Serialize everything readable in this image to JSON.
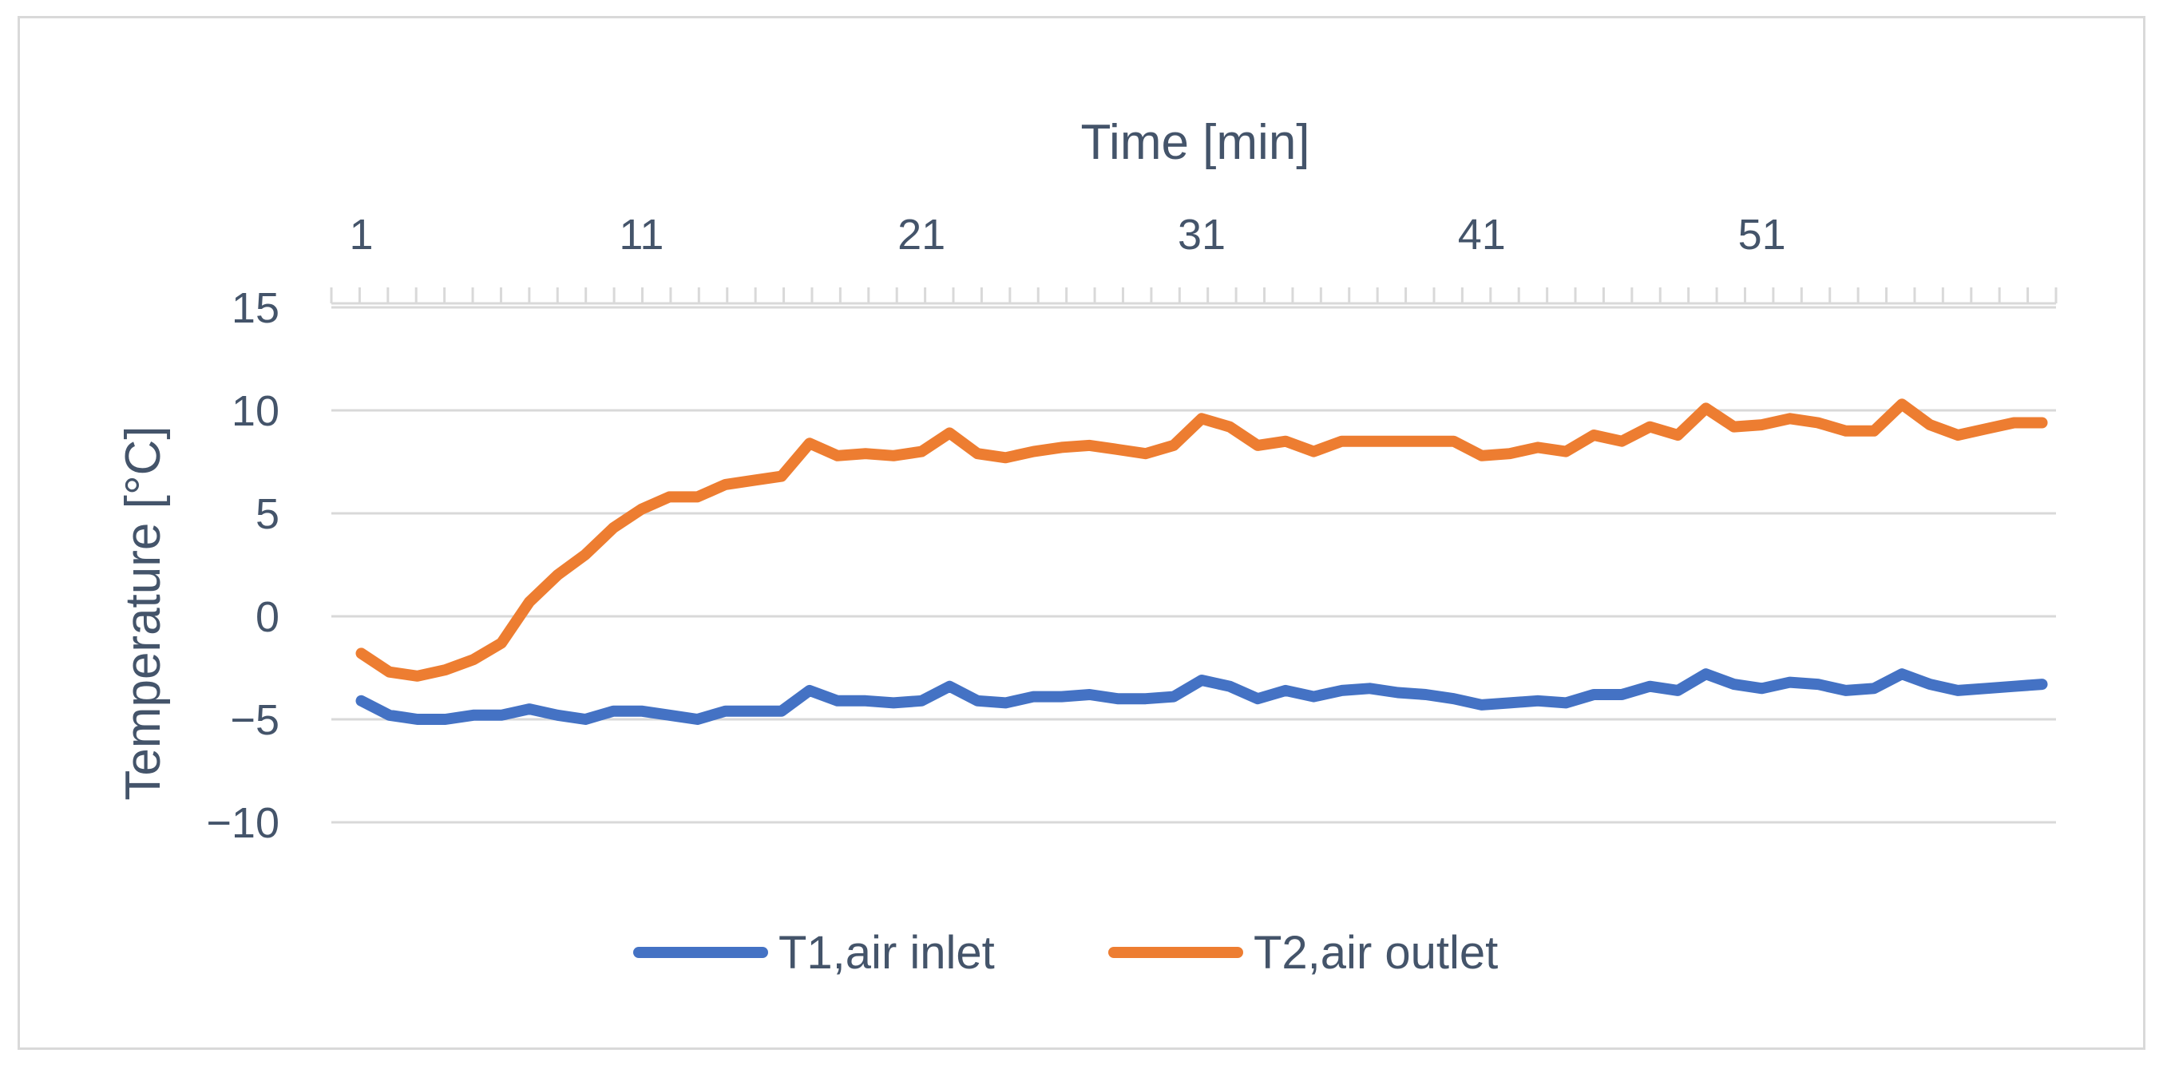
{
  "chart_data": {
    "type": "line",
    "title": "",
    "xlabel": "Time [min]",
    "ylabel": "Temperature [°C]",
    "x_tick_labels": [
      "1",
      "11",
      "21",
      "31",
      "41",
      "51"
    ],
    "y_tick_labels": [
      "15",
      "10",
      "5",
      "0",
      "−5",
      "−10"
    ],
    "y_ticks": [
      15,
      10,
      5,
      0,
      -5,
      -10
    ],
    "x_ticks": [
      1,
      11,
      21,
      31,
      41,
      51
    ],
    "xlim": [
      1,
      61
    ],
    "ylim": [
      -10,
      15
    ],
    "x_axis_position": "top",
    "grid": true,
    "legend_position": "bottom",
    "x": [
      1,
      2,
      3,
      4,
      5,
      6,
      7,
      8,
      9,
      10,
      11,
      12,
      13,
      14,
      15,
      16,
      17,
      18,
      19,
      20,
      21,
      22,
      23,
      24,
      25,
      26,
      27,
      28,
      29,
      30,
      31,
      32,
      33,
      34,
      35,
      36,
      37,
      38,
      39,
      40,
      41,
      42,
      43,
      44,
      45,
      46,
      47,
      48,
      49,
      50,
      51,
      52,
      53,
      54,
      55,
      56,
      57,
      58,
      59,
      60,
      61
    ],
    "series": [
      {
        "name": "T1,air inlet",
        "color": "#4472c4",
        "values": [
          -4.1,
          -4.8,
          -5.0,
          -5.0,
          -4.8,
          -4.8,
          -4.5,
          -4.8,
          -5.0,
          -4.6,
          -4.6,
          -4.8,
          -5.0,
          -4.6,
          -4.6,
          -4.6,
          -3.6,
          -4.1,
          -4.1,
          -4.2,
          -4.1,
          -3.4,
          -4.1,
          -4.2,
          -3.9,
          -3.9,
          -3.8,
          -4.0,
          -4.0,
          -3.9,
          -3.1,
          -3.4,
          -4.0,
          -3.6,
          -3.9,
          -3.6,
          -3.5,
          -3.7,
          -3.8,
          -4.0,
          -4.3,
          -4.2,
          -4.1,
          -4.2,
          -3.8,
          -3.8,
          -3.4,
          -3.6,
          -2.8,
          -3.3,
          -3.5,
          -3.2,
          -3.3,
          -3.6,
          -3.5,
          -2.8,
          -3.3,
          -3.6,
          -3.5,
          -3.4,
          -3.3
        ]
      },
      {
        "name": "T2,air outlet",
        "color": "#ed7d31",
        "values": [
          -1.8,
          -2.7,
          -2.9,
          -2.6,
          -2.1,
          -1.3,
          0.7,
          2.0,
          3.0,
          4.3,
          5.2,
          5.8,
          5.8,
          6.4,
          6.6,
          6.8,
          8.4,
          7.8,
          7.9,
          7.8,
          8.0,
          8.9,
          7.9,
          7.7,
          8.0,
          8.2,
          8.3,
          8.1,
          7.9,
          8.3,
          9.6,
          9.2,
          8.3,
          8.5,
          8.0,
          8.5,
          8.5,
          8.5,
          8.5,
          8.5,
          7.8,
          7.9,
          8.2,
          8.0,
          8.8,
          8.5,
          9.2,
          8.8,
          10.1,
          9.2,
          9.3,
          9.6,
          9.4,
          9.0,
          9.0,
          10.3,
          9.3,
          8.8,
          9.1,
          9.4,
          9.4
        ]
      }
    ]
  }
}
